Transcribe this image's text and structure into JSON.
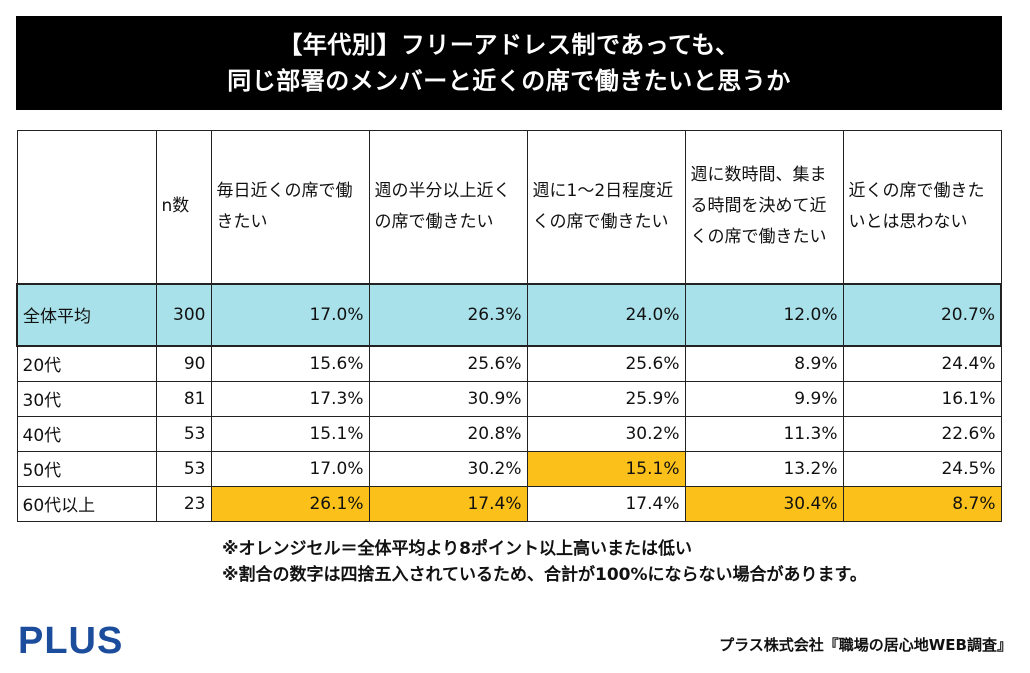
{
  "title": {
    "line1": "【年代別】フリーアドレス制であっても、",
    "line2": "同じ部署のメンバーと近くの席で働きたいと思うか"
  },
  "table": {
    "headers": {
      "label": "",
      "n": "n数",
      "col1": "毎日近くの席で働きたい",
      "col2": "週の半分以上近くの席で働きたい",
      "col3": "週に1〜2日程度近くの席で働きたい",
      "col4": "週に数時間、集まる時間を決めて近くの席で働きたい",
      "col5": "近くの席で働きたいとは思わない"
    },
    "rows": [
      {
        "label": "全体平均",
        "n": "300",
        "v": [
          "17.0%",
          "26.3%",
          "24.0%",
          "12.0%",
          "20.7%"
        ]
      },
      {
        "label": "20代",
        "n": "90",
        "v": [
          "15.6%",
          "25.6%",
          "25.6%",
          "8.9%",
          "24.4%"
        ]
      },
      {
        "label": "30代",
        "n": "81",
        "v": [
          "17.3%",
          "30.9%",
          "25.9%",
          "9.9%",
          "16.1%"
        ]
      },
      {
        "label": "40代",
        "n": "53",
        "v": [
          "15.1%",
          "20.8%",
          "30.2%",
          "11.3%",
          "22.6%"
        ]
      },
      {
        "label": "50代",
        "n": "53",
        "v": [
          "17.0%",
          "30.2%",
          "15.1%",
          "13.2%",
          "24.5%"
        ]
      },
      {
        "label": "60代以上",
        "n": "23",
        "v": [
          "26.1%",
          "17.4%",
          "17.4%",
          "30.4%",
          "8.7%"
        ]
      }
    ],
    "highlight_color": "#fbc01a",
    "average_color": "#a9e1ea"
  },
  "notes": {
    "line1": "※オレンジセル＝全体平均より8ポイント以上高いまたは低い",
    "line2": "※割合の数字は四捨五入されているため、合計が100%にならない場合があります。"
  },
  "footer": {
    "logo": "PLUS",
    "credit": "プラス株式会社『職場の居心地WEB調査』"
  },
  "brand_color": "#1c4d9c"
}
